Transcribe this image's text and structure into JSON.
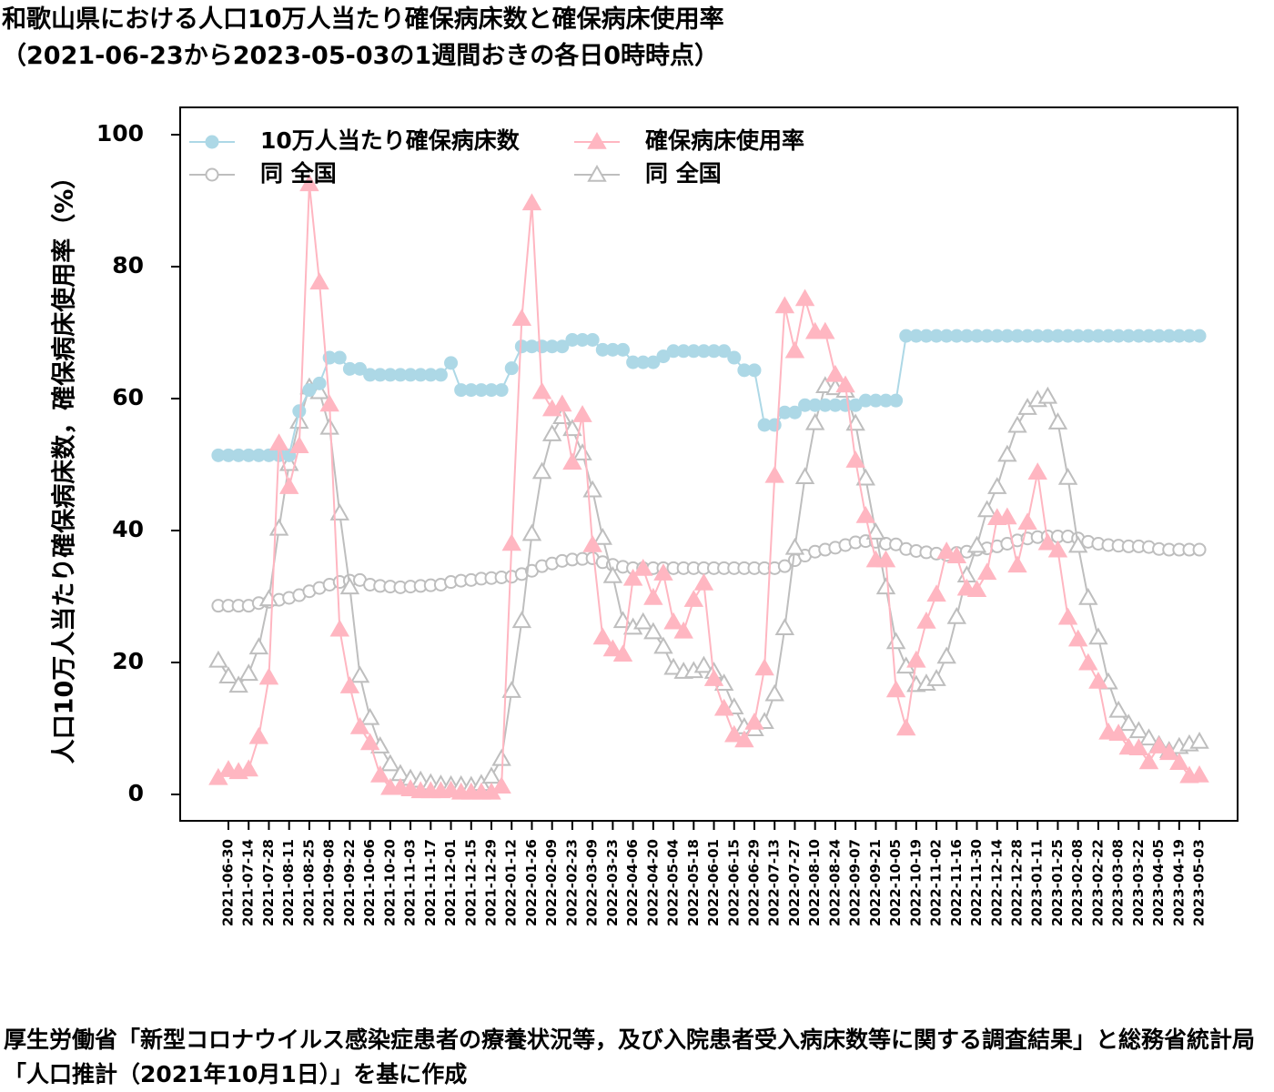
{
  "chart_data": {
    "type": "line",
    "title": "和歌山県における人口10万人当たり確保病床数と確保病床使用率",
    "subtitle": "（2021-06-23から2023-05-03の1週間おきの各日0時時点）",
    "y_label": "人口10万人当たり確保病床数，確保病床使用率（%）",
    "source": "厚生労働省「新型コロナウイルス感染症患者の療養状況等，及び入院患者受入病床数等に関する調査結果」と総務省統計局「人口推計（2021年10月1日）」を基に作成",
    "categories": [
      null,
      "2021-06-30",
      null,
      "2021-07-14",
      null,
      "2021-07-28",
      null,
      "2021-08-11",
      null,
      "2021-08-25",
      null,
      "2021-09-08",
      null,
      "2021-09-22",
      null,
      "2021-10-06",
      null,
      "2021-10-20",
      null,
      "2021-11-03",
      null,
      "2021-11-17",
      null,
      "2021-12-01",
      null,
      "2021-12-15",
      null,
      "2021-12-29",
      null,
      "2022-01-12",
      null,
      "2022-01-26",
      null,
      "2022-02-09",
      null,
      "2022-02-23",
      null,
      "2022-03-09",
      null,
      "2022-03-23",
      null,
      "2022-04-06",
      null,
      "2022-04-20",
      null,
      "2022-05-04",
      null,
      "2022-05-18",
      null,
      "2022-06-01",
      null,
      "2022-06-15",
      null,
      "2022-06-29",
      null,
      "2022-07-13",
      null,
      "2022-07-27",
      null,
      "2022-08-10",
      null,
      "2022-08-24",
      null,
      "2022-09-07",
      null,
      "2022-09-21",
      null,
      "2022-10-05",
      null,
      "2022-10-19",
      null,
      "2022-11-02",
      null,
      "2022-11-16",
      null,
      "2022-11-30",
      null,
      "2022-12-14",
      null,
      "2022-12-28",
      null,
      "2023-01-11",
      null,
      "2023-01-25",
      null,
      "2023-02-08",
      null,
      "2023-02-22",
      null,
      "2023-03-08",
      null,
      "2023-03-22",
      null,
      "2023-04-05",
      null,
      "2023-04-19",
      null,
      "2023-05-03"
    ],
    "series": [
      {
        "name": "10万人当たり確保病床数",
        "color": "#add8e6",
        "marker": "circle",
        "filled": true,
        "values": [
          51.4,
          51.4,
          51.4,
          51.4,
          51.4,
          51.4,
          51.4,
          51.4,
          58.1,
          61.3,
          62.3,
          66.2,
          66.2,
          64.5,
          64.5,
          63.6,
          63.6,
          63.6,
          63.6,
          63.6,
          63.6,
          63.6,
          63.6,
          65.4,
          61.3,
          61.3,
          61.3,
          61.3,
          61.3,
          64.6,
          67.9,
          67.9,
          67.9,
          67.9,
          67.9,
          68.9,
          68.9,
          68.9,
          67.4,
          67.4,
          67.4,
          65.5,
          65.5,
          65.5,
          66.4,
          67.2,
          67.2,
          67.2,
          67.2,
          67.2,
          67.2,
          66.2,
          64.3,
          64.3,
          56.0,
          56.0,
          57.9,
          57.9,
          59.0,
          59.0,
          59.0,
          59.0,
          59.0,
          59.0,
          59.7,
          59.7,
          59.7,
          59.7,
          69.5,
          69.5,
          69.5,
          69.5,
          69.5,
          69.5,
          69.5,
          69.5,
          69.5,
          69.5,
          69.5,
          69.5,
          69.5,
          69.5,
          69.5,
          69.5,
          69.5,
          69.5,
          69.5,
          69.5,
          69.5,
          69.5,
          69.5,
          69.5,
          69.5,
          69.5,
          69.5,
          69.5,
          69.5,
          69.5
        ]
      },
      {
        "name": "同 全国",
        "color": "#bebebe",
        "marker": "circle",
        "filled": false,
        "values": [
          28.6,
          28.6,
          28.6,
          28.6,
          29.0,
          29.2,
          29.5,
          29.8,
          30.2,
          30.8,
          31.3,
          31.8,
          32.2,
          32.4,
          32.5,
          31.8,
          31.6,
          31.5,
          31.4,
          31.5,
          31.6,
          31.7,
          31.8,
          32.2,
          32.4,
          32.5,
          32.7,
          32.8,
          32.9,
          33.0,
          33.4,
          33.9,
          34.6,
          35.0,
          35.4,
          35.6,
          35.7,
          35.8,
          35.2,
          34.8,
          34.5,
          34.3,
          34.3,
          34.3,
          34.3,
          34.3,
          34.3,
          34.3,
          34.3,
          34.3,
          34.3,
          34.3,
          34.3,
          34.3,
          34.3,
          34.3,
          34.6,
          35.5,
          36.2,
          36.8,
          37.1,
          37.4,
          37.8,
          38.2,
          38.4,
          38.3,
          38.0,
          37.9,
          37.2,
          36.9,
          36.7,
          36.5,
          36.3,
          36.6,
          36.8,
          37.1,
          37.3,
          37.6,
          38.0,
          38.5,
          38.8,
          39.0,
          39.1,
          39.1,
          39.1,
          38.8,
          38.3,
          38.0,
          37.8,
          37.7,
          37.6,
          37.6,
          37.5,
          37.2,
          37.1,
          37.1,
          37.1,
          37.1
        ]
      },
      {
        "name": "確保病床使用率",
        "color": "#ffb6c1",
        "marker": "triangle",
        "filled": true,
        "values": [
          2.5,
          3.7,
          3.4,
          3.8,
          8.7,
          17.7,
          53.2,
          46.6,
          52.8,
          92.5,
          77.6,
          59.1,
          25.0,
          16.4,
          10.2,
          7.8,
          2.9,
          1.0,
          1.0,
          0.8,
          0.5,
          0.5,
          0.5,
          0.6,
          0.3,
          0.3,
          0.3,
          0.3,
          1.2,
          38.0,
          72.1,
          89.6,
          61.0,
          58.4,
          59.1,
          50.3,
          57.5,
          37.8,
          23.8,
          22.0,
          21.2,
          32.7,
          34.2,
          29.8,
          33.5,
          26.1,
          24.7,
          29.5,
          32.0,
          17.5,
          13.0,
          9.0,
          8.2,
          10.9,
          19.1,
          48.3,
          74.0,
          67.2,
          75.1,
          70.1,
          70.1,
          63.6,
          62.0,
          50.6,
          42.2,
          35.5,
          35.5,
          15.8,
          10.0,
          20.3,
          26.2,
          30.3,
          36.8,
          36.1,
          31.2,
          31.0,
          33.6,
          41.9,
          42.0,
          34.7,
          41.2,
          48.8,
          38.1,
          37.0,
          26.8,
          23.5,
          19.9,
          17.1,
          9.4,
          9.2,
          7.1,
          7.0,
          4.9,
          7.3,
          6.3,
          4.8,
          2.8,
          2.9
        ]
      },
      {
        "name": "同 全国",
        "color": "#bebebe",
        "marker": "triangle",
        "filled": false,
        "values": [
          20.3,
          17.9,
          16.5,
          18.3,
          22.3,
          29.6,
          40.3,
          50.1,
          56.5,
          61.7,
          61.0,
          55.6,
          42.6,
          31.4,
          18.0,
          11.6,
          7.3,
          4.6,
          3.1,
          2.4,
          2.1,
          1.7,
          1.5,
          1.4,
          1.4,
          1.3,
          1.6,
          2.7,
          5.4,
          15.7,
          26.3,
          39.5,
          48.9,
          54.6,
          57.2,
          55.4,
          51.7,
          46.1,
          38.9,
          33.1,
          26.3,
          25.3,
          26.1,
          24.6,
          22.4,
          19.2,
          18.6,
          18.7,
          19.5,
          18.6,
          16.8,
          13.2,
          10.2,
          9.9,
          11.0,
          15.2,
          25.2,
          37.4,
          48.1,
          56.3,
          61.9,
          61.6,
          61.2,
          56.2,
          47.9,
          39.7,
          31.4,
          23.1,
          19.4,
          16.6,
          16.8,
          17.5,
          20.9,
          26.9,
          33.2,
          37.7,
          43.1,
          46.6,
          51.5,
          55.9,
          58.6,
          59.8,
          60.3,
          56.4,
          48.0,
          37.7,
          29.8,
          23.8,
          17.0,
          12.7,
          10.7,
          9.6,
          8.5,
          7.5,
          6.6,
          7.2,
          7.6,
          8.0
        ]
      }
    ],
    "ylim": [
      0,
      100
    ],
    "yticks": [
      0,
      20,
      40,
      60,
      80,
      100
    ],
    "grid": false,
    "legend": "top-left"
  }
}
